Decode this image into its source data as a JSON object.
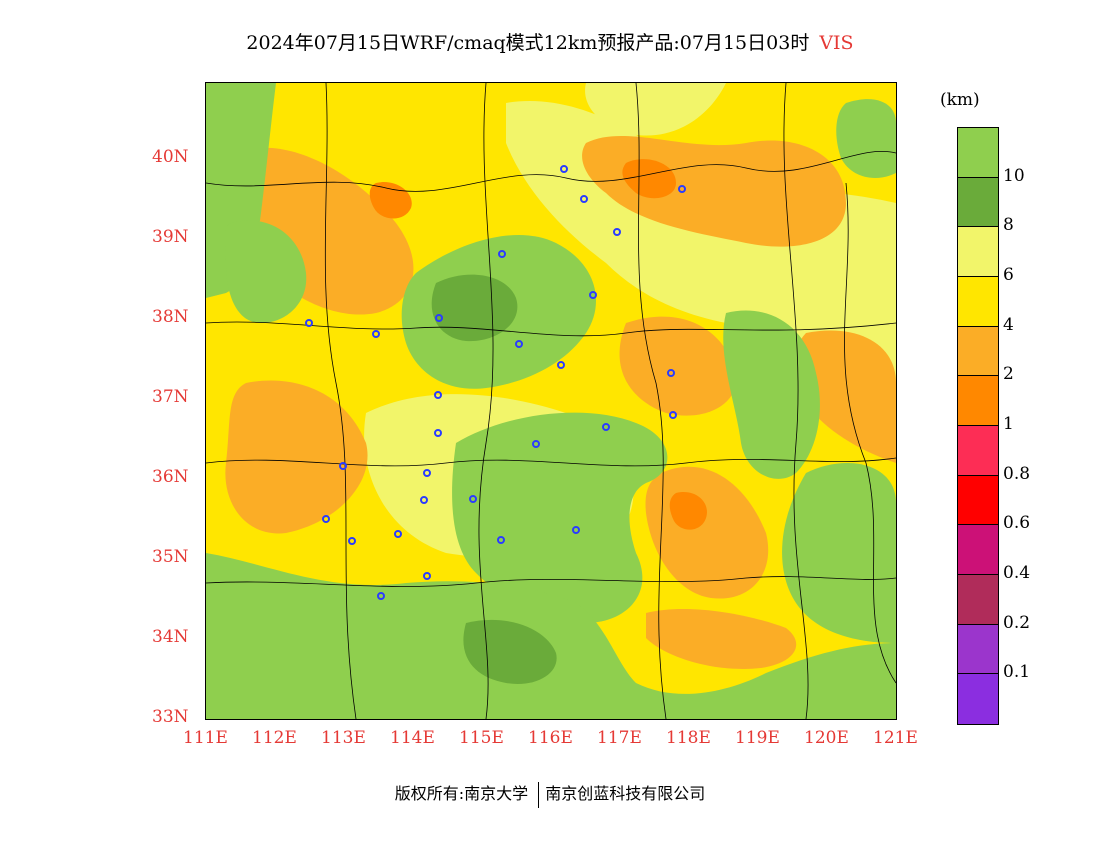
{
  "title": {
    "main": "2024年07月15日WRF/cmaq模式12km预报产品:07月15日03时",
    "variable": "VIS"
  },
  "map": {
    "x_ticks": [
      "111E",
      "112E",
      "113E",
      "114E",
      "115E",
      "116E",
      "117E",
      "118E",
      "119E",
      "120E",
      "121E"
    ],
    "y_ticks": [
      "33N",
      "34N",
      "35N",
      "36N",
      "37N",
      "38N",
      "39N",
      "40N"
    ]
  },
  "colorbar": {
    "unit": "(km)",
    "labels": [
      "10",
      "8",
      "6",
      "4",
      "2",
      "1",
      "0.8",
      "0.6",
      "0.4",
      "0.2",
      "0.1"
    ],
    "colors": [
      "#8fcf4e",
      "#6aab3a",
      "#f2f56a",
      "#ffe600",
      "#fbad26",
      "#ff8800",
      "#fd2d55",
      "#ff0000",
      "#cc1177",
      "#b02c5a",
      "#9b35cc",
      "#8b2ee0"
    ]
  },
  "footer": {
    "left": "版权所有:南京大学",
    "right": "南京创蓝科技有限公司"
  },
  "colors": {
    "axis_text": "#e53935",
    "title_var": "#e53935",
    "station_marker": "#2a3cff"
  }
}
